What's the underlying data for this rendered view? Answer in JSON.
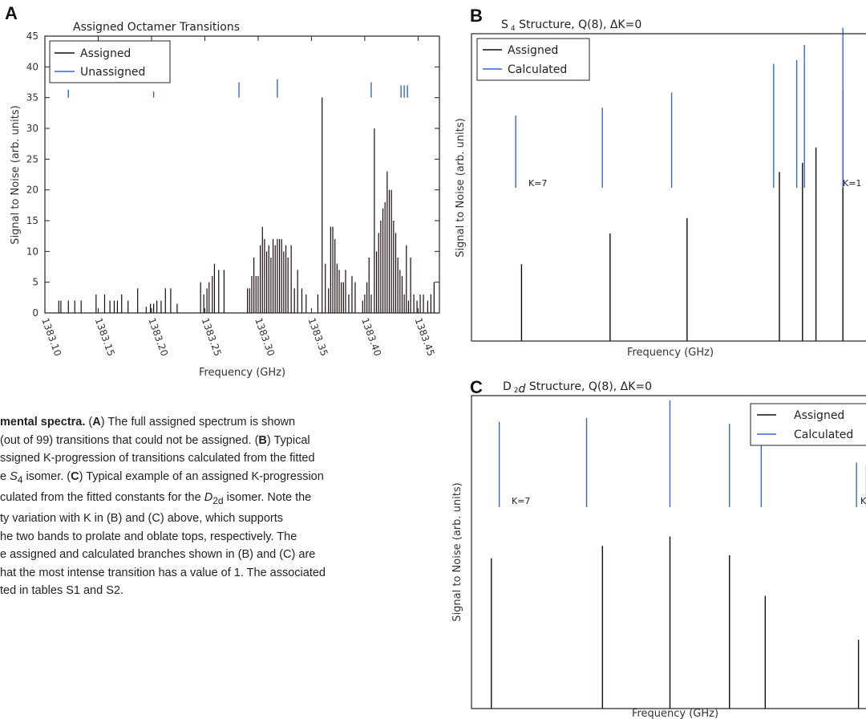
{
  "figure": {
    "panel_a": {
      "letter": "A",
      "chart_data": {
        "type": "bar",
        "title": "Assigned Octamer Transitions",
        "xlabel": "Frequency (GHz)",
        "ylabel": "Signal to Noise (arb. units)",
        "xlim": [
          1383.1,
          1383.47
        ],
        "ylim": [
          0,
          45
        ],
        "xticks": [
          "1383.10",
          "1383.15",
          "1383.20",
          "1383.25",
          "1383.30",
          "1383.35",
          "1383.40",
          "1383.45"
        ],
        "yticks": [
          "0",
          "5",
          "10",
          "15",
          "20",
          "25",
          "30",
          "35",
          "40",
          "45"
        ],
        "legend_position": "top-left",
        "series": [
          {
            "name": "Assigned",
            "color": "#1a0a0a",
            "points": [
              [
                1383.113,
                2
              ],
              [
                1383.115,
                2
              ],
              [
                1383.122,
                2
              ],
              [
                1383.128,
                2
              ],
              [
                1383.134,
                2
              ],
              [
                1383.148,
                3
              ],
              [
                1383.156,
                3
              ],
              [
                1383.161,
                2
              ],
              [
                1383.165,
                2
              ],
              [
                1383.168,
                2
              ],
              [
                1383.172,
                3
              ],
              [
                1383.178,
                2
              ],
              [
                1383.187,
                4
              ],
              [
                1383.195,
                1
              ],
              [
                1383.199,
                1.5
              ],
              [
                1383.202,
                1.5
              ],
              [
                1383.205,
                2
              ],
              [
                1383.209,
                2
              ],
              [
                1383.213,
                4
              ],
              [
                1383.218,
                4
              ],
              [
                1383.224,
                1.5
              ],
              [
                1383.246,
                5
              ],
              [
                1383.249,
                3
              ],
              [
                1383.252,
                4
              ],
              [
                1383.254,
                5
              ],
              [
                1383.257,
                6
              ],
              [
                1383.259,
                8
              ],
              [
                1383.263,
                7
              ],
              [
                1383.268,
                7
              ],
              [
                1383.29,
                4
              ],
              [
                1383.292,
                4
              ],
              [
                1383.294,
                6
              ],
              [
                1383.296,
                9
              ],
              [
                1383.298,
                6
              ],
              [
                1383.3,
                6
              ],
              [
                1383.302,
                11
              ],
              [
                1383.304,
                14
              ],
              [
                1383.306,
                12
              ],
              [
                1383.308,
                10
              ],
              [
                1383.31,
                11
              ],
              [
                1383.312,
                9
              ],
              [
                1383.314,
                12
              ],
              [
                1383.316,
                11
              ],
              [
                1383.318,
                12
              ],
              [
                1383.32,
                12
              ],
              [
                1383.322,
                12
              ],
              [
                1383.324,
                10
              ],
              [
                1383.326,
                11
              ],
              [
                1383.328,
                9
              ],
              [
                1383.331,
                11
              ],
              [
                1383.334,
                4
              ],
              [
                1383.337,
                7
              ],
              [
                1383.341,
                4
              ],
              [
                1383.345,
                3
              ],
              [
                1383.356,
                3
              ],
              [
                1383.36,
                35
              ],
              [
                1383.363,
                8
              ],
              [
                1383.366,
                4
              ],
              [
                1383.368,
                14
              ],
              [
                1383.37,
                14
              ],
              [
                1383.372,
                12
              ],
              [
                1383.374,
                8
              ],
              [
                1383.376,
                7
              ],
              [
                1383.378,
                5
              ],
              [
                1383.38,
                5
              ],
              [
                1383.382,
                7
              ],
              [
                1383.385,
                3
              ],
              [
                1383.388,
                6
              ],
              [
                1383.391,
                5
              ],
              [
                1383.398,
                2
              ],
              [
                1383.4,
                3
              ],
              [
                1383.402,
                5
              ],
              [
                1383.404,
                9
              ],
              [
                1383.406,
                3
              ],
              [
                1383.409,
                30
              ],
              [
                1383.411,
                10
              ],
              [
                1383.413,
                13
              ],
              [
                1383.415,
                15
              ],
              [
                1383.417,
                17
              ],
              [
                1383.419,
                18
              ],
              [
                1383.421,
                23
              ],
              [
                1383.423,
                20
              ],
              [
                1383.425,
                20
              ],
              [
                1383.427,
                15
              ],
              [
                1383.429,
                13
              ],
              [
                1383.431,
                9
              ],
              [
                1383.433,
                7
              ],
              [
                1383.435,
                6
              ],
              [
                1383.437,
                3
              ],
              [
                1383.439,
                11
              ],
              [
                1383.441,
                2
              ],
              [
                1383.443,
                9
              ],
              [
                1383.446,
                3
              ],
              [
                1383.449,
                2
              ],
              [
                1383.452,
                3
              ],
              [
                1383.455,
                3
              ],
              [
                1383.459,
                2
              ],
              [
                1383.462,
                3
              ],
              [
                1383.465,
                5
              ]
            ]
          },
          {
            "name": "Unassigned",
            "color": "#3366dd",
            "segments": [
              [
                1383.122,
                35,
                36.3
              ],
              [
                1383.202,
                35,
                36
              ],
              [
                1383.282,
                35,
                37.5
              ],
              [
                1383.318,
                35,
                38
              ],
              [
                1383.406,
                35,
                37.5
              ],
              [
                1383.434,
                35,
                37
              ],
              [
                1383.437,
                35,
                37
              ],
              [
                1383.44,
                35,
                37
              ]
            ]
          }
        ]
      }
    },
    "panel_b": {
      "letter": "B",
      "chart_data": {
        "type": "bar",
        "title": "S $_4$ Structure, Q(8), ΔK=0",
        "title_main": "S",
        "title_sub": "4",
        "title_rest": " Structure, Q(8), ΔK=0",
        "xlabel": "Frequency (GHz)",
        "ylabel": "Signal to Noise (arb. units)",
        "legend_position": "top-left",
        "k_labels": [
          "K=7",
          "K=1"
        ],
        "series": [
          {
            "name": "Assigned",
            "color": "#1a0a0a",
            "positions": [
              0.13,
              0.36,
              0.56,
              0.8,
              0.86,
              0.895,
              0.965
            ],
            "values": [
              0.25,
              0.35,
              0.4,
              0.55,
              0.58,
              0.63,
              0.82
            ]
          },
          {
            "name": "Calculated",
            "color": "#3366dd",
            "positions": [
              0.115,
              0.34,
              0.52,
              0.785,
              0.845,
              0.865,
              0.965
            ],
            "values": [
              0.38,
              0.42,
              0.5,
              0.65,
              0.67,
              0.75,
              0.84
            ]
          }
        ]
      }
    },
    "panel_c": {
      "letter": "C",
      "chart_data": {
        "type": "bar",
        "title_main": "D",
        "title_sub": "2",
        "title_italic": "d",
        "title_rest": " Structure, Q(8), ΔK=0",
        "xlabel": "Frequency (GHz)",
        "ylabel": "Signal to Noise (arb. units)",
        "legend_position": "top-right",
        "k_labels": [
          "K=7",
          "K="
        ],
        "series": [
          {
            "name": "Assigned",
            "color": "#1a0a0a",
            "positions": [
              0.05,
              0.33,
              0.5,
              0.65,
              0.74,
              0.975,
              1.0
            ],
            "values": [
              0.48,
              0.52,
              0.55,
              0.49,
              0.36,
              0.22,
              0.18
            ]
          },
          {
            "name": "Calculated",
            "color": "#3366dd",
            "positions": [
              0.07,
              0.29,
              0.5,
              0.65,
              0.73,
              0.97,
              0.995
            ],
            "values": [
              0.44,
              0.46,
              0.55,
              0.43,
              0.32,
              0.23,
              0.22
            ]
          }
        ]
      }
    },
    "caption": {
      "line1_bold": "mental spectra.",
      "line1_a": " (",
      "line1_letter": "A",
      "line1_rest": ") The full assigned spectrum is shown",
      "line2": "(out of 99) transitions that could not be assigned. (",
      "line2_letter": "B",
      "line2_rest": ") Typical",
      "line3": "ssigned K-progression of transitions calculated from the fitted",
      "line4_pre": "e ",
      "line4_sym": "S",
      "line4_sub": "4",
      "line4_mid": " isomer. (",
      "line4_letter": "C",
      "line4_rest": ") Typical example of an assigned K-progression",
      "line5_pre": "culated from the fitted constants for the ",
      "line5_sym": "D",
      "line5_sub": "2d",
      "line5_rest": " isomer. Note the",
      "line6": "ty variation with K in (B) and (C) above, which supports",
      "line7": "he two bands to prolate and oblate tops, respectively. The",
      "line8": "e assigned and calculated branches shown in (B) and (C) are",
      "line9": "hat the most intense transition has a value of 1. The associated",
      "line10": "ted in tables S1 and S2."
    }
  }
}
